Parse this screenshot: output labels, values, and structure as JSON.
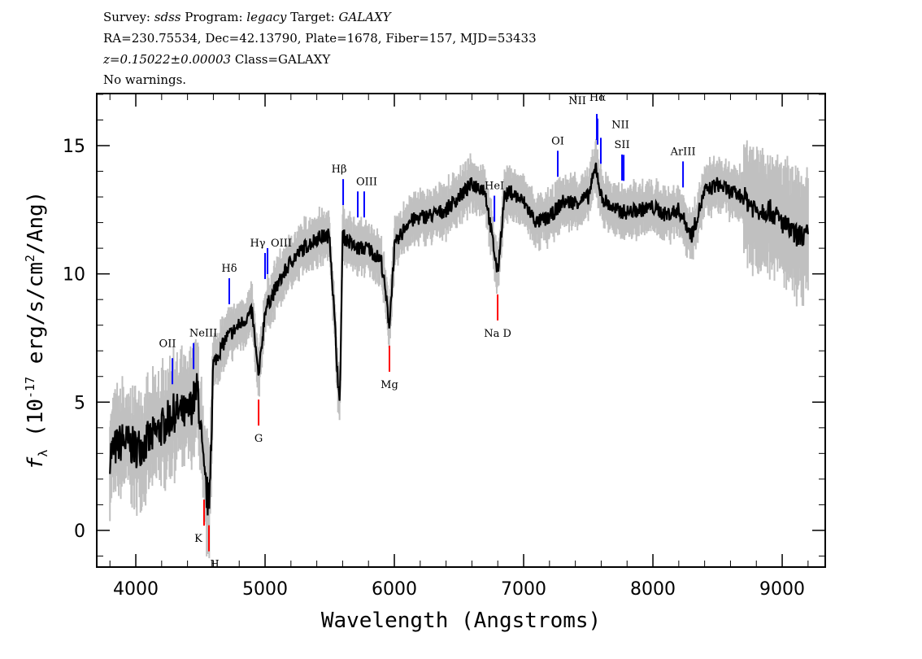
{
  "header": {
    "line1": {
      "survey_label": "Survey: ",
      "survey": "sdss",
      "program_label": " Program: ",
      "program": "legacy",
      "target_label": " Target: ",
      "target": "GALAXY"
    },
    "line2": "RA=230.75534, Dec=42.13790, Plate=1678, Fiber=157, MJD=53433",
    "line3": {
      "z": "z=0.15022±0.00003",
      "class": " Class=GALAXY"
    },
    "line4": "No warnings."
  },
  "chart_data": {
    "type": "line",
    "xlabel": "Wavelength (Angstroms)",
    "ylabel": "f_λ (10^-17 erg/s/cm^2/Ang)",
    "ylabel_parts": {
      "f": "f",
      "sub": "λ",
      "pre": " (10",
      "sup1": "-17",
      "mid": " erg/s/cm",
      "sup2": "2",
      "post": "/Ang)"
    },
    "xlim": [
      3698,
      9333
    ],
    "ylim": [
      -1.43,
      17.03
    ],
    "xticks": [
      4000,
      5000,
      6000,
      7000,
      8000,
      9000
    ],
    "yticks": [
      0,
      5,
      10,
      15
    ],
    "grid": false,
    "colors": {
      "flux": "#000000",
      "error_band": "#c0c0c0",
      "emission": "#0000ff",
      "absorption": "#ff0000"
    },
    "series": [
      {
        "x": [
          3800,
          3900,
          4000,
          4100,
          4200,
          4300,
          4400,
          4480,
          4528,
          4566,
          4600,
          4700,
          4800,
          4900,
          4950,
          5000,
          5100,
          5200,
          5300,
          5400,
          5500,
          5577,
          5600,
          5700,
          5800,
          5900,
          5962,
          6000,
          6100,
          6200,
          6300,
          6400,
          6500,
          6600,
          6700,
          6799,
          6850,
          6900,
          7000,
          7100,
          7200,
          7300,
          7400,
          7500,
          7560,
          7600,
          7700,
          7800,
          7900,
          8000,
          8100,
          8200,
          8300,
          8400,
          8500,
          8600,
          8700,
          8800,
          8900,
          9000,
          9100,
          9200
        ],
        "y": [
          3.0,
          3.5,
          3.2,
          3.5,
          4.0,
          4.6,
          4.5,
          5.5,
          2.0,
          1.0,
          6.5,
          7.5,
          8.0,
          8.5,
          5.9,
          8.6,
          9.6,
          10.5,
          11.0,
          11.4,
          11.5,
          4.7,
          11.5,
          11.0,
          11.0,
          10.5,
          8.0,
          11.0,
          12.0,
          12.2,
          12.3,
          12.5,
          13.0,
          13.5,
          13.3,
          10.0,
          13.0,
          13.2,
          12.8,
          12.0,
          12.2,
          12.8,
          12.8,
          13.0,
          14.2,
          13.0,
          12.5,
          12.4,
          12.5,
          12.6,
          12.3,
          12.5,
          11.5,
          13.2,
          13.5,
          13.2,
          13.0,
          12.5,
          12.5,
          12.0,
          11.5,
          11.5
        ]
      }
    ],
    "emission_lines": [
      {
        "label": "OII",
        "wave": 4283
      },
      {
        "label": "NeIII",
        "wave": 4447
      },
      {
        "label": "Hδ",
        "wave": 4723
      },
      {
        "label": "Hγ",
        "wave": 5000
      },
      {
        "label": "OIII",
        "wave": 5019
      },
      {
        "label": "Hβ",
        "wave": 5604
      },
      {
        "label": "OIII",
        "wave": 5717
      },
      {
        "label": "",
        "wave": 5767
      },
      {
        "label": "HeI",
        "wave": 6774
      },
      {
        "label": "OI",
        "wave": 7264
      },
      {
        "label": "NII",
        "wave": 7566
      },
      {
        "label": "Hα",
        "wave": 7572
      },
      {
        "label": "NII",
        "wave": 7597
      },
      {
        "label": "SII",
        "wave": 7761
      },
      {
        "label": "",
        "wave": 7774
      },
      {
        "label": "ArIII",
        "wave": 8233
      }
    ],
    "absorption_lines": [
      {
        "label": "K",
        "wave": 4528
      },
      {
        "label": "H",
        "wave": 4566
      },
      {
        "label": "G",
        "wave": 4950
      },
      {
        "label": "Mg",
        "wave": 5962
      },
      {
        "label": "Na D",
        "wave": 6799
      }
    ]
  }
}
